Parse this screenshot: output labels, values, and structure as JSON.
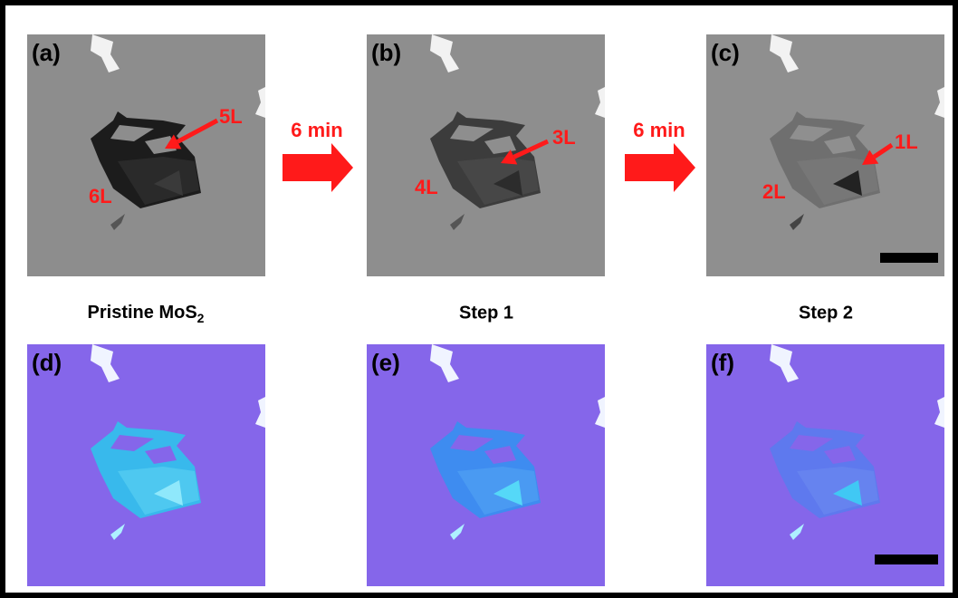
{
  "panels": [
    {
      "label": "(a)",
      "layers": [
        "5L",
        "6L"
      ]
    },
    {
      "label": "(b)",
      "layers": [
        "3L",
        "4L"
      ]
    },
    {
      "label": "(c)",
      "layers": [
        "1L",
        "2L"
      ]
    },
    {
      "label": "(d)"
    },
    {
      "label": "(e)"
    },
    {
      "label": "(f)"
    }
  ],
  "steps": [
    {
      "label": "6 min"
    },
    {
      "label": "6 min"
    }
  ],
  "captions": [
    {
      "text": "Pristine MoS",
      "subscript": "2"
    },
    {
      "text": "Step 1"
    },
    {
      "text": "Step 2"
    }
  ]
}
